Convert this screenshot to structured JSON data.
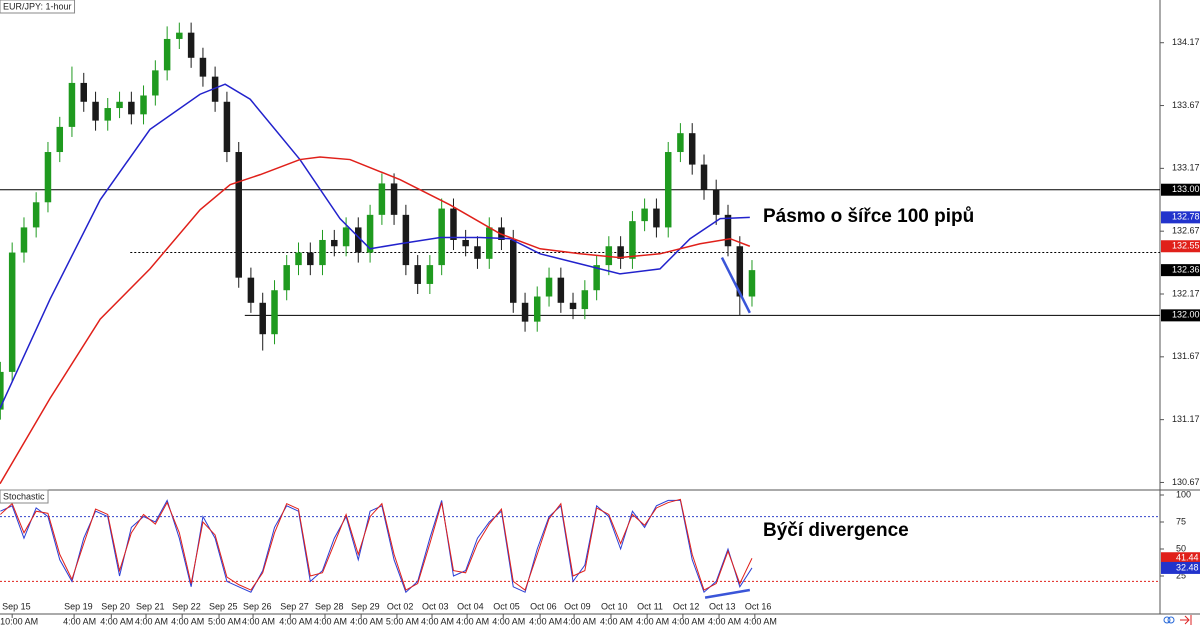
{
  "chart_data": [
    {
      "type": "candlestick",
      "title": "EUR/JPY: 1-hour",
      "x": [
        -0.33,
        0,
        0.33,
        0.67,
        1,
        1.33,
        1.67,
        2,
        2.33,
        2.67,
        3,
        3.33,
        3.67,
        4,
        4.33,
        4.67,
        5,
        5.33,
        5.67,
        6,
        6.33,
        6.67,
        7,
        7.33,
        7.67,
        8,
        8.33,
        8.67,
        9,
        9.33,
        9.67,
        10,
        10.33,
        10.67,
        11,
        11.33,
        11.67,
        12,
        12.33,
        12.67,
        13,
        13.33,
        13.67,
        14,
        14.33,
        14.67,
        15,
        15.33,
        15.67,
        16,
        16.33,
        16.67,
        17,
        17.33,
        17.67,
        18,
        18.33,
        18.67,
        19,
        19.33,
        19.67,
        20,
        20.33,
        20.67
      ],
      "open": [
        131.25,
        131.55,
        132.5,
        132.7,
        132.9,
        133.3,
        133.5,
        133.85,
        133.7,
        133.55,
        133.65,
        133.7,
        133.6,
        133.75,
        133.95,
        134.2,
        134.25,
        134.05,
        133.9,
        133.7,
        133.3,
        132.3,
        132.1,
        131.85,
        132.2,
        132.4,
        132.5,
        132.4,
        132.6,
        132.55,
        132.7,
        132.5,
        132.8,
        133.05,
        132.8,
        132.4,
        132.25,
        132.4,
        132.85,
        132.6,
        132.55,
        132.45,
        132.7,
        132.6,
        132.1,
        131.95,
        132.15,
        132.3,
        132.1,
        132.05,
        132.2,
        132.4,
        132.55,
        132.45,
        132.75,
        132.85,
        132.7,
        133.3,
        133.45,
        133.2,
        133.0,
        132.8,
        132.55,
        132.15
      ],
      "high": [
        131.63,
        132.58,
        132.78,
        132.98,
        133.38,
        133.58,
        133.98,
        133.93,
        133.78,
        133.73,
        133.78,
        133.78,
        133.83,
        134.03,
        134.3,
        134.33,
        134.33,
        134.13,
        133.98,
        133.78,
        133.38,
        132.38,
        132.18,
        132.28,
        132.48,
        132.58,
        132.58,
        132.68,
        132.68,
        132.78,
        132.78,
        132.88,
        133.13,
        133.13,
        132.88,
        132.48,
        132.48,
        132.93,
        132.93,
        132.68,
        132.63,
        132.78,
        132.78,
        132.68,
        132.18,
        132.23,
        132.38,
        132.38,
        132.18,
        132.28,
        132.48,
        132.63,
        132.63,
        132.83,
        132.93,
        132.93,
        133.38,
        133.53,
        133.53,
        133.28,
        133.08,
        132.88,
        132.63,
        132.44
      ],
      "low": [
        131.17,
        131.47,
        132.42,
        132.62,
        132.82,
        133.22,
        133.42,
        133.62,
        133.47,
        133.47,
        133.57,
        133.52,
        133.52,
        133.67,
        133.87,
        134.12,
        133.97,
        133.82,
        133.62,
        133.22,
        132.22,
        132.02,
        131.72,
        131.77,
        132.12,
        132.32,
        132.32,
        132.32,
        132.47,
        132.47,
        132.42,
        132.42,
        132.72,
        132.72,
        132.32,
        132.17,
        132.17,
        132.32,
        132.52,
        132.47,
        132.37,
        132.37,
        132.52,
        132.02,
        131.87,
        131.87,
        132.07,
        132.02,
        131.97,
        131.97,
        132.12,
        132.32,
        132.37,
        132.37,
        132.67,
        132.62,
        132.62,
        133.22,
        133.12,
        132.92,
        132.72,
        132.47,
        132.0,
        132.07
      ],
      "close": [
        131.55,
        132.5,
        132.7,
        132.9,
        133.3,
        133.5,
        133.85,
        133.7,
        133.55,
        133.65,
        133.7,
        133.6,
        133.75,
        133.95,
        134.2,
        134.25,
        134.05,
        133.9,
        133.7,
        133.3,
        132.3,
        132.1,
        131.85,
        132.2,
        132.4,
        132.5,
        132.4,
        132.6,
        132.55,
        132.7,
        132.5,
        132.8,
        133.05,
        132.8,
        132.4,
        132.25,
        132.4,
        132.85,
        132.6,
        132.55,
        132.45,
        132.7,
        132.6,
        132.1,
        131.95,
        132.15,
        132.3,
        132.1,
        132.05,
        132.2,
        132.4,
        132.55,
        132.45,
        132.75,
        132.85,
        132.7,
        133.3,
        133.45,
        133.2,
        133.0,
        132.8,
        132.55,
        132.15,
        132.36
      ],
      "bull_color": "#1f9a1f",
      "bear_color": "#1a1a1a",
      "overlays": [
        {
          "color": "#2222cc",
          "x": [
            -0.34,
            1.06,
            2.46,
            3.85,
            5.25,
            5.95,
            6.65,
            8.04,
            9.16,
            10.0,
            10.84,
            11.96,
            13.07,
            13.91,
            14.75,
            15.87,
            16.98,
            18.1,
            18.94,
            19.78,
            20.61
          ],
          "values": [
            131.26,
            132.13,
            132.92,
            133.48,
            133.76,
            133.84,
            133.72,
            133.24,
            132.77,
            132.53,
            132.57,
            132.62,
            132.62,
            132.61,
            132.49,
            132.41,
            132.33,
            132.37,
            132.61,
            132.77,
            132.78
          ]
        },
        {
          "color": "#e0201a",
          "x": [
            -0.34,
            1.06,
            2.46,
            3.85,
            5.25,
            6.09,
            6.93,
            8.04,
            8.6,
            9.44,
            10.84,
            12.23,
            13.63,
            14.75,
            15.87,
            16.98,
            18.1,
            19.22,
            20.06,
            20.61
          ],
          "values": [
            130.66,
            131.34,
            131.97,
            132.37,
            132.84,
            133.04,
            133.12,
            133.24,
            133.26,
            133.24,
            133.08,
            132.88,
            132.65,
            132.53,
            132.49,
            132.46,
            132.49,
            132.57,
            132.61,
            132.55
          ]
        }
      ],
      "levels": [
        {
          "value": 133.0,
          "from": -0.34,
          "style": "solid",
          "color": "#000"
        },
        {
          "value": 132.0,
          "from": 6.5,
          "style": "solid",
          "color": "#000"
        },
        {
          "value": 132.5,
          "from": 3.3,
          "style": "dotted",
          "color": "#000"
        }
      ],
      "trendline": {
        "x": [
          19.83,
          20.61
        ],
        "values": [
          132.46,
          132.02
        ],
        "color": "#3a55d8"
      },
      "markers": [
        {
          "value": 133.0,
          "label": "133.00",
          "color": "#000"
        },
        {
          "value": 132.78,
          "color": "#2233cc"
        },
        {
          "value": 132.55,
          "color": "#e0201a"
        },
        {
          "value": 132.36,
          "color": "#000"
        },
        {
          "value": 132.0,
          "label": "132.00",
          "color": "#000"
        }
      ],
      "annotation": "Pásmo o šířce 100 pipů",
      "xlim": [
        -0.34,
        32.07
      ],
      "ylim": [
        130.61,
        134.51
      ],
      "yticks": [
        130.67,
        131.17,
        131.67,
        132.17,
        132.67,
        133.17,
        133.67,
        134.17
      ]
    },
    {
      "type": "line",
      "title": "Stochastic",
      "x": [
        -0.33,
        0,
        0.33,
        0.67,
        1,
        1.33,
        1.67,
        2,
        2.33,
        2.67,
        3,
        3.33,
        3.67,
        4,
        4.33,
        4.67,
        5,
        5.33,
        5.67,
        6,
        6.33,
        6.67,
        7,
        7.33,
        7.67,
        8,
        8.33,
        8.67,
        9,
        9.33,
        9.67,
        10,
        10.33,
        10.67,
        11,
        11.33,
        11.67,
        12,
        12.33,
        12.67,
        13,
        13.33,
        13.67,
        14,
        14.33,
        14.67,
        15,
        15.33,
        15.67,
        16,
        16.33,
        16.67,
        17,
        17.33,
        17.67,
        18,
        18.33,
        18.67,
        19,
        19.33,
        19.67,
        20,
        20.33,
        20.67
      ],
      "series": [
        {
          "color": "#2b3fd6",
          "values": [
            85,
            90,
            60,
            88,
            80,
            40,
            20,
            60,
            85,
            80,
            25,
            70,
            80,
            75,
            95,
            60,
            15,
            80,
            60,
            20,
            15,
            10,
            30,
            70,
            90,
            85,
            20,
            30,
            60,
            80,
            40,
            85,
            90,
            40,
            10,
            20,
            60,
            95,
            25,
            30,
            60,
            75,
            85,
            15,
            10,
            50,
            80,
            90,
            20,
            35,
            90,
            80,
            50,
            85,
            70,
            90,
            95,
            95,
            40,
            10,
            20,
            50,
            15,
            32.48
          ]
        },
        {
          "color": "#e0201a",
          "values": [
            82,
            92,
            65,
            85,
            83,
            45,
            22,
            55,
            87,
            82,
            30,
            65,
            82,
            73,
            93,
            65,
            18,
            75,
            63,
            24,
            17,
            12,
            28,
            65,
            92,
            87,
            25,
            28,
            55,
            82,
            45,
            80,
            92,
            45,
            12,
            18,
            55,
            93,
            30,
            28,
            55,
            73,
            87,
            20,
            12,
            45,
            78,
            92,
            25,
            30,
            88,
            82,
            55,
            82,
            72,
            88,
            93,
            96,
            45,
            12,
            18,
            48,
            18,
            41.44
          ]
        }
      ],
      "levels": [
        {
          "value": 80,
          "color": "#3344cc"
        },
        {
          "value": 20,
          "color": "#e0201a"
        }
      ],
      "trendline": {
        "x": [
          19.36,
          20.61
        ],
        "values": [
          5,
          12
        ],
        "color": "#3a55d8"
      },
      "markers": [
        {
          "value": 41.44,
          "color": "#e0201a"
        },
        {
          "value": 32.48,
          "color": "#2233cc"
        }
      ],
      "annotation": "Býčí divergence",
      "xlim": [
        -0.34,
        32.07
      ],
      "ylim": [
        0,
        100
      ],
      "yticks": [
        25,
        50,
        75,
        100
      ],
      "xticks": [
        {
          "value": 0,
          "label": "Sep 15"
        },
        {
          "value": 1.73,
          "label": "Sep 19"
        },
        {
          "value": 2.77,
          "label": "Sep 20"
        },
        {
          "value": 3.74,
          "label": "Sep 21"
        },
        {
          "value": 4.75,
          "label": "Sep 22"
        },
        {
          "value": 5.78,
          "label": "Sep 25"
        },
        {
          "value": 6.73,
          "label": "Sep 26"
        },
        {
          "value": 7.77,
          "label": "Sep 27"
        },
        {
          "value": 8.74,
          "label": "Sep 28"
        },
        {
          "value": 9.75,
          "label": "Sep 29"
        },
        {
          "value": 10.75,
          "label": "Oct 02"
        },
        {
          "value": 11.73,
          "label": "Oct 03"
        },
        {
          "value": 12.71,
          "label": "Oct 04"
        },
        {
          "value": 13.72,
          "label": "Oct 05"
        },
        {
          "value": 14.75,
          "label": "Oct 06"
        },
        {
          "value": 15.7,
          "label": "Oct 09"
        },
        {
          "value": 16.73,
          "label": "Oct 10"
        },
        {
          "value": 17.74,
          "label": "Oct 11"
        },
        {
          "value": 18.74,
          "label": "Oct 12"
        },
        {
          "value": 19.75,
          "label": "Oct 13"
        },
        {
          "value": 20.75,
          "label": "Oct 16"
        }
      ],
      "xtick_times": [
        "10:00 AM",
        "4:00 AM",
        "4:00 AM",
        "4:00 AM",
        "4:00 AM",
        "5:00 AM",
        "4:00 AM",
        "4:00 AM",
        "4:00 AM",
        "4:00 AM",
        "5:00 AM",
        "4:00 AM",
        "4:00 AM",
        "4:00 AM",
        "4:00 AM",
        "4:00 AM",
        "4:00 AM",
        "4:00 AM",
        "4:00 AM",
        "4:00 AM",
        "4:00 AM"
      ]
    }
  ]
}
